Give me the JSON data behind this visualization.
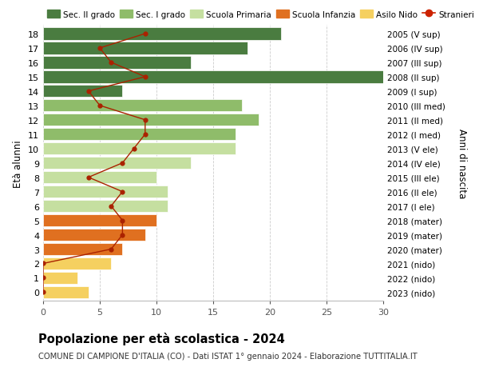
{
  "ages": [
    18,
    17,
    16,
    15,
    14,
    13,
    12,
    11,
    10,
    9,
    8,
    7,
    6,
    5,
    4,
    3,
    2,
    1,
    0
  ],
  "right_labels": [
    "2005 (V sup)",
    "2006 (IV sup)",
    "2007 (III sup)",
    "2008 (II sup)",
    "2009 (I sup)",
    "2010 (III med)",
    "2011 (II med)",
    "2012 (I med)",
    "2013 (V ele)",
    "2014 (IV ele)",
    "2015 (III ele)",
    "2016 (II ele)",
    "2017 (I ele)",
    "2018 (mater)",
    "2019 (mater)",
    "2020 (mater)",
    "2021 (nido)",
    "2022 (nido)",
    "2023 (nido)"
  ],
  "bar_values": [
    21,
    18,
    13,
    30,
    7,
    17.5,
    19,
    17,
    17,
    13,
    10,
    11,
    11,
    10,
    9,
    7,
    6,
    3,
    4
  ],
  "bar_colors": [
    "#4a7c40",
    "#4a7c40",
    "#4a7c40",
    "#4a7c40",
    "#4a7c40",
    "#8fbc6a",
    "#8fbc6a",
    "#8fbc6a",
    "#c5dfa0",
    "#c5dfa0",
    "#c5dfa0",
    "#c5dfa0",
    "#c5dfa0",
    "#e07020",
    "#e07020",
    "#e07020",
    "#f5d060",
    "#f5d060",
    "#f5d060"
  ],
  "stranieri_values": [
    9,
    5,
    6,
    9,
    4,
    5,
    9,
    9,
    8,
    7,
    4,
    7,
    6,
    7,
    7,
    6,
    0,
    0,
    0
  ],
  "title": "Popolazione per età scolastica - 2024",
  "subtitle": "COMUNE DI CAMPIONE D'ITALIA (CO) - Dati ISTAT 1° gennaio 2024 - Elaborazione TUTTITALIA.IT",
  "ylabel": "Età alunni",
  "right_ylabel": "Anni di nascita",
  "xlim": [
    0,
    30
  ],
  "xticks": [
    0,
    5,
    10,
    15,
    20,
    25,
    30
  ],
  "legend_entries": [
    {
      "label": "Sec. II grado",
      "color": "#4a7c40"
    },
    {
      "label": "Sec. I grado",
      "color": "#8fbc6a"
    },
    {
      "label": "Scuola Primaria",
      "color": "#c5dfa0"
    },
    {
      "label": "Scuola Infanzia",
      "color": "#e07020"
    },
    {
      "label": "Asilo Nido",
      "color": "#f5d060"
    },
    {
      "label": "Stranieri",
      "color": "#cc2200"
    }
  ],
  "background_color": "#ffffff",
  "grid_color": "#cccccc",
  "bar_height": 0.85,
  "stranieri_line_color": "#aa2200",
  "stranieri_markersize": 4.5
}
